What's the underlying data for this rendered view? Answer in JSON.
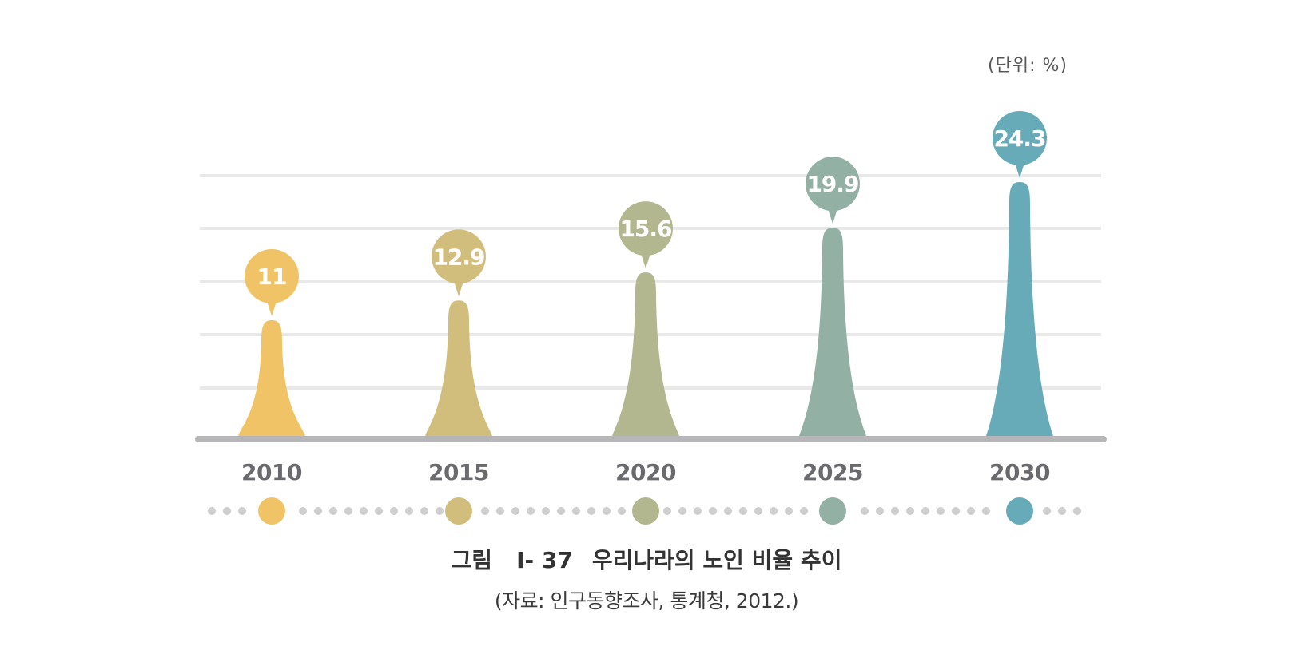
{
  "unit_label": "(단위: %)",
  "caption": {
    "label": "그림",
    "number": "Ⅰ- 37",
    "title": "우리나라의 노인 비율 추이",
    "source": "(자료: 인구동향조사, 통계청, 2012.)"
  },
  "chart_data": {
    "type": "bar",
    "title": "우리나라의 노인 비율 추이",
    "xlabel": "",
    "ylabel": "",
    "unit": "%",
    "categories": [
      "2010",
      "2015",
      "2020",
      "2025",
      "2030"
    ],
    "values": [
      11,
      12.9,
      15.6,
      19.9,
      24.3
    ],
    "value_labels": [
      "11",
      "12.9",
      "15.6",
      "19.9",
      "24.3"
    ],
    "colors": [
      "#f0c466",
      "#d2be7c",
      "#b3b78f",
      "#92b0a3",
      "#67abb9"
    ],
    "grid": true,
    "ylim": [
      0,
      25
    ]
  }
}
